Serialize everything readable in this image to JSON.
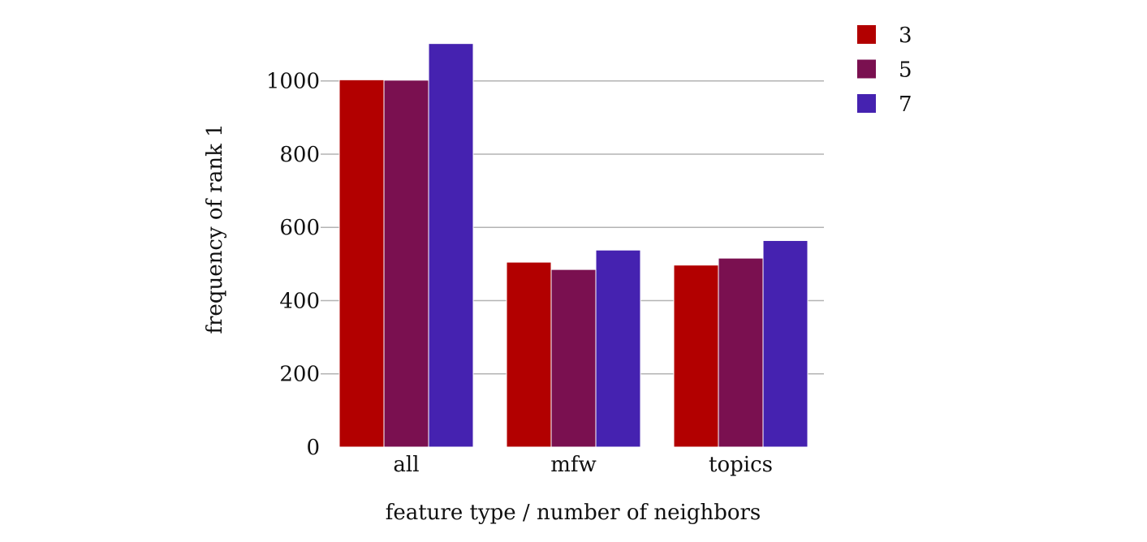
{
  "chart_data": {
    "type": "bar",
    "categories": [
      "all",
      "mfw",
      "topics"
    ],
    "series": [
      {
        "name": "3",
        "color": "#b20000",
        "values": [
          1003,
          505,
          497
        ]
      },
      {
        "name": "5",
        "color": "#7a1050",
        "values": [
          1002,
          485,
          516
        ]
      },
      {
        "name": "7",
        "color": "#4522b0",
        "values": [
          1102,
          538,
          564
        ]
      }
    ],
    "xlabel": "feature type / number of neighbors",
    "ylabel": "frequency of rank 1",
    "ylim": [
      0,
      1150
    ],
    "yticks": [
      0,
      200,
      400,
      600,
      800,
      1000
    ],
    "grid": "horizontal",
    "legend_position": "top-right"
  }
}
